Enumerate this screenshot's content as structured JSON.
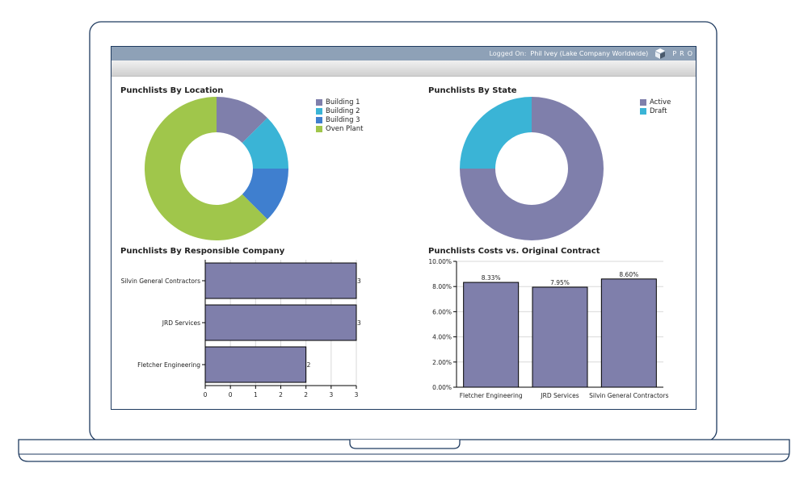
{
  "header": {
    "logged_on_label": "Logged On:",
    "user": "Phil Ivey (Lake Company Worldwide)",
    "brand": "PRO",
    "logo_icon": "cube-stack-icon"
  },
  "colors": {
    "frame": "#1e3a5f",
    "topbar": "#8ea1b7",
    "bar_fill": "#7f7fab",
    "purple": "#7f7fab",
    "cyan": "#3ab4d6",
    "blue": "#3f7fcf",
    "green": "#a0c64b"
  },
  "panels": {
    "location": {
      "title": "Punchlists By Location",
      "legend": [
        {
          "label": "Building 1",
          "color": "#7f7fab"
        },
        {
          "label": "Building 2",
          "color": "#3ab4d6"
        },
        {
          "label": "Building 3",
          "color": "#3f7fcf"
        },
        {
          "label": "Oven Plant",
          "color": "#a0c64b"
        }
      ]
    },
    "state": {
      "title": "Punchlists By State",
      "legend": [
        {
          "label": "Active",
          "color": "#7f7fab"
        },
        {
          "label": "Draft",
          "color": "#3ab4d6"
        }
      ]
    },
    "company": {
      "title": "Punchlists By Responsible Company"
    },
    "costs": {
      "title": "Punchlists Costs vs. Original Contract"
    }
  },
  "chart_data": [
    {
      "type": "pie",
      "donut": true,
      "title": "Punchlists By Location",
      "categories": [
        "Building 1",
        "Building 2",
        "Building 3",
        "Oven Plant"
      ],
      "values": [
        1,
        1,
        1,
        5
      ]
    },
    {
      "type": "pie",
      "donut": true,
      "title": "Punchlists By State",
      "categories": [
        "Active",
        "Draft"
      ],
      "values": [
        3,
        1
      ]
    },
    {
      "type": "bar",
      "orientation": "horizontal",
      "title": "Punchlists By Responsible Company",
      "categories": [
        "Silvin General Contractors",
        "JRD Services",
        "Fletcher Engineering"
      ],
      "values": [
        3,
        3,
        2
      ],
      "data_labels": [
        "3",
        "3",
        "2"
      ],
      "x_tick_labels": [
        "0",
        "0",
        "1",
        "2",
        "2",
        "3",
        "3"
      ],
      "xlim": [
        0,
        3
      ],
      "grid": true
    },
    {
      "type": "bar",
      "title": "Punchlists Costs vs. Original Contract",
      "categories": [
        "Fletcher Engineering",
        "JRD Services",
        "Silvin General Contractors"
      ],
      "values": [
        8.33,
        7.95,
        8.6
      ],
      "data_labels": [
        "8.33%",
        "7.95%",
        "8.60%"
      ],
      "y_tick_labels": [
        "0.00%",
        "2.00%",
        "4.00%",
        "6.00%",
        "8.00%",
        "10.00%"
      ],
      "ylim": [
        0,
        10
      ],
      "grid": true
    }
  ]
}
